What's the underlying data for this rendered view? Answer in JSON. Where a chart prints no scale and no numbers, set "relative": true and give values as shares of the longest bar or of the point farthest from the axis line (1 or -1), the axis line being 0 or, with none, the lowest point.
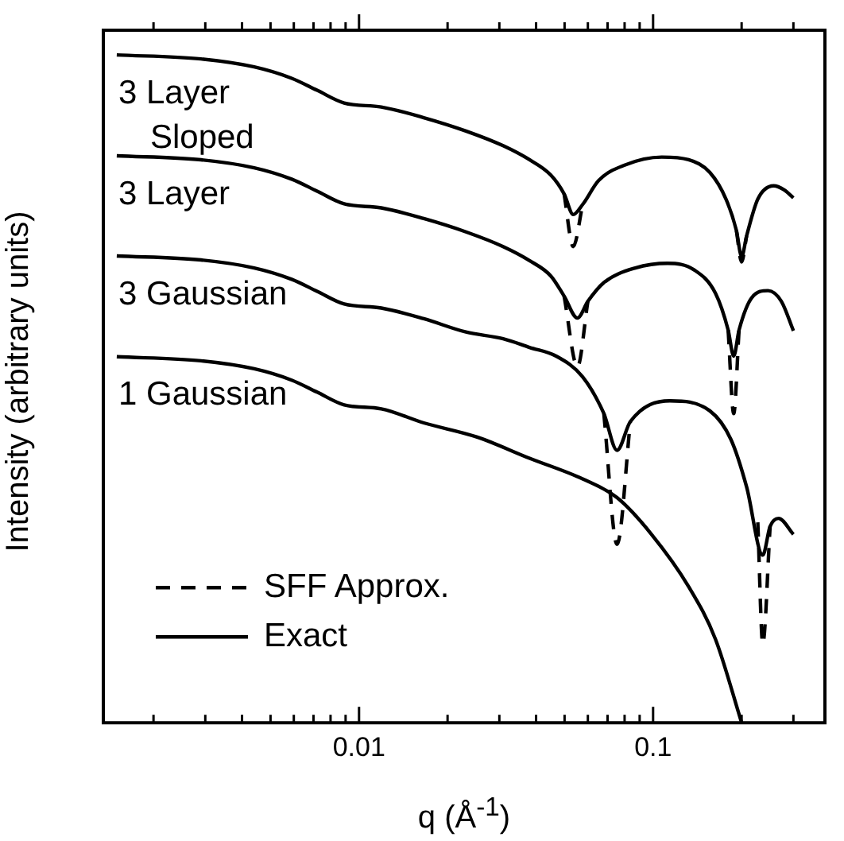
{
  "chart_data": {
    "type": "line",
    "xlabel": "q (Å$^{-1}$)",
    "ylabel": "Intensity (arbitrary units)",
    "relative": true,
    "log": "x",
    "xlim": [
      0.00135,
      0.384
    ],
    "xticks": [
      {
        "value": 0.002,
        "label": null
      },
      {
        "value": 0.003,
        "label": null
      },
      {
        "value": 0.004,
        "label": null
      },
      {
        "value": 0.005,
        "label": null
      },
      {
        "value": 0.006,
        "label": null
      },
      {
        "value": 0.007,
        "label": null
      },
      {
        "value": 0.008,
        "label": null
      },
      {
        "value": 0.009,
        "label": null
      },
      0.01,
      {
        "value": 0.02,
        "label": null
      },
      {
        "value": 0.03,
        "label": null
      },
      {
        "value": 0.04,
        "label": null
      },
      {
        "value": 0.05,
        "label": null
      },
      {
        "value": 0.06,
        "label": null
      },
      {
        "value": 0.07,
        "label": null
      },
      {
        "value": 0.08,
        "label": null
      },
      {
        "value": 0.09,
        "label": null
      },
      0.1,
      {
        "value": 0.2,
        "label": null
      },
      {
        "value": 0.3,
        "label": null
      }
    ],
    "legend": "bottom left",
    "grid": false,
    "marker": "none",
    "series": [
      {
        "name": "SFF Approx.",
        "color": "#000000",
        "line_style": "dashed",
        "x": [
          0.0498,
          0.0535,
          0.0576,
          0.1,
          0.192,
          0.2,
          0.208
        ],
        "values": [
          0.792,
          0.713,
          0.776,
          null,
          0.737,
          0.69,
          0.729
        ]
      },
      {
        "color": "#000000",
        "line_style": "dashed",
        "x": [
          0.0498,
          0.0553,
          0.06,
          0.1,
          0.18,
          0.188,
          0.196
        ],
        "values": [
          0.639,
          0.533,
          0.631,
          null,
          0.588,
          0.463,
          0.588
        ]
      },
      {
        "color": "#000000",
        "line_style": "dashed",
        "x": [
          0.068,
          0.0754,
          0.0837,
          0.15,
          0.227,
          0.236,
          0.25
        ],
        "values": [
          0.463,
          0.267,
          0.451,
          null,
          0.3,
          0.118,
          0.294
        ]
      },
      {
        "name": "Exact",
        "color": "#000000",
        "line_style": "solid",
        "x": [
          0.0015,
          0.0029,
          0.0044,
          0.0059,
          0.0072,
          0.0089,
          0.0119,
          0.0166,
          0.0231,
          0.0309,
          0.038,
          0.0449,
          0.0498,
          0.0535,
          0.0576,
          0.0653,
          0.08,
          0.107,
          0.132,
          0.156,
          0.177,
          0.192,
          0.2,
          0.208,
          0.227,
          0.257,
          0.279,
          0.3
        ],
        "values": [
          1.0,
          0.994,
          0.982,
          0.965,
          0.947,
          0.928,
          0.922,
          0.906,
          0.886,
          0.864,
          0.843,
          0.82,
          0.792,
          0.761,
          0.776,
          0.812,
          0.835,
          0.847,
          0.843,
          0.824,
          0.784,
          0.737,
          0.698,
          0.729,
          0.784,
          0.804,
          0.798,
          0.786
        ]
      },
      {
        "color": "#000000",
        "line_style": "solid",
        "x": [
          0.0015,
          0.0029,
          0.0044,
          0.0059,
          0.0072,
          0.0089,
          0.0119,
          0.0166,
          0.0231,
          0.0309,
          0.038,
          0.0449,
          0.0498,
          0.0553,
          0.06,
          0.068,
          0.087,
          0.112,
          0.138,
          0.163,
          0.18,
          0.188,
          0.196,
          0.217,
          0.246,
          0.273,
          0.3
        ],
        "values": [
          0.849,
          0.843,
          0.831,
          0.814,
          0.796,
          0.777,
          0.771,
          0.755,
          0.735,
          0.713,
          0.692,
          0.669,
          0.639,
          0.606,
          0.631,
          0.659,
          0.681,
          0.688,
          0.678,
          0.643,
          0.588,
          0.549,
          0.588,
          0.637,
          0.647,
          0.631,
          0.587
        ]
      },
      {
        "color": "#000000",
        "line_style": "solid",
        "x": [
          0.0015,
          0.0029,
          0.0044,
          0.0059,
          0.0072,
          0.0089,
          0.0119,
          0.0166,
          0.0231,
          0.0309,
          0.038,
          0.0468,
          0.0576,
          0.068,
          0.0754,
          0.0837,
          0.114,
          0.156,
          0.184,
          0.208,
          0.236,
          0.25,
          0.267,
          0.3
        ],
        "values": [
          0.699,
          0.693,
          0.681,
          0.664,
          0.646,
          0.627,
          0.621,
          0.605,
          0.585,
          0.575,
          0.562,
          0.549,
          0.518,
          0.463,
          0.408,
          0.451,
          0.482,
          0.467,
          0.424,
          0.353,
          0.251,
          0.294,
          0.306,
          0.282
        ]
      },
      {
        "color": "#000000",
        "line_style": "solid",
        "x": [
          0.0015,
          0.0029,
          0.0044,
          0.0059,
          0.0072,
          0.0089,
          0.0119,
          0.0166,
          0.0251,
          0.038,
          0.0576,
          0.0754,
          0.0988,
          0.132,
          0.163,
          0.2
        ],
        "values": [
          0.548,
          0.542,
          0.53,
          0.513,
          0.495,
          0.476,
          0.47,
          0.449,
          0.428,
          0.396,
          0.365,
          0.337,
          0.282,
          0.204,
          0.125,
          0
        ]
      }
    ],
    "annotations": [
      "3 Layer Sloped",
      "3 Layer",
      "3 Gaussian",
      "1 Gaussian"
    ]
  }
}
